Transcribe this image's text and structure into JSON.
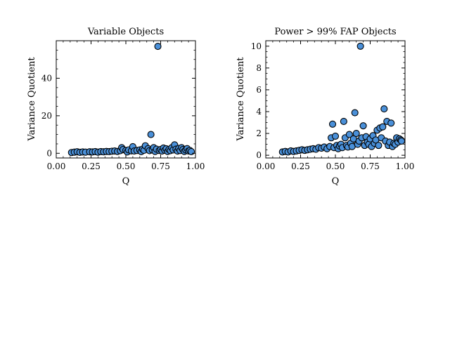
{
  "chart_data": [
    {
      "type": "scatter",
      "title": "Variable Objects",
      "xlabel": "Q",
      "ylabel": "Variance Quotient",
      "xlim": [
        0.0,
        1.0
      ],
      "ylim": [
        -2.5,
        60
      ],
      "xticks": [
        "0.00",
        "0.25",
        "0.50",
        "0.75",
        "1.00"
      ],
      "yticks": [
        "0",
        "20",
        "40"
      ],
      "marker_color": "#4a90d9",
      "marker_edge_color": "#000000",
      "points": [
        [
          0.11,
          0.4
        ],
        [
          0.13,
          0.6
        ],
        [
          0.15,
          0.8
        ],
        [
          0.17,
          0.5
        ],
        [
          0.19,
          0.7
        ],
        [
          0.21,
          0.6
        ],
        [
          0.24,
          0.8
        ],
        [
          0.26,
          0.7
        ],
        [
          0.28,
          0.9
        ],
        [
          0.3,
          0.6
        ],
        [
          0.32,
          0.9
        ],
        [
          0.34,
          0.8
        ],
        [
          0.36,
          1.0
        ],
        [
          0.38,
          0.9
        ],
        [
          0.4,
          1.1
        ],
        [
          0.42,
          1.2
        ],
        [
          0.44,
          1.0
        ],
        [
          0.46,
          1.4
        ],
        [
          0.47,
          3.0
        ],
        [
          0.48,
          2.0
        ],
        [
          0.5,
          1.5
        ],
        [
          0.51,
          0.7
        ],
        [
          0.52,
          1.8
        ],
        [
          0.54,
          1.3
        ],
        [
          0.55,
          3.5
        ],
        [
          0.56,
          1.2
        ],
        [
          0.58,
          1.5
        ],
        [
          0.6,
          1.8
        ],
        [
          0.61,
          0.9
        ],
        [
          0.62,
          2.2
        ],
        [
          0.63,
          1.6
        ],
        [
          0.64,
          4.0
        ],
        [
          0.66,
          2.5
        ],
        [
          0.67,
          1.4
        ],
        [
          0.68,
          10.0
        ],
        [
          0.69,
          1.8
        ],
        [
          0.7,
          3.0
        ],
        [
          0.71,
          1.0
        ],
        [
          0.72,
          2.2
        ],
        [
          0.73,
          57.0
        ],
        [
          0.74,
          1.5
        ],
        [
          0.75,
          2.0
        ],
        [
          0.76,
          1.2
        ],
        [
          0.77,
          2.8
        ],
        [
          0.78,
          1.6
        ],
        [
          0.79,
          2.4
        ],
        [
          0.8,
          1.0
        ],
        [
          0.81,
          2.0
        ],
        [
          0.82,
          1.4
        ],
        [
          0.83,
          3.0
        ],
        [
          0.84,
          1.8
        ],
        [
          0.85,
          4.5
        ],
        [
          0.86,
          2.2
        ],
        [
          0.87,
          1.2
        ],
        [
          0.88,
          2.6
        ],
        [
          0.89,
          1.5
        ],
        [
          0.9,
          3.0
        ],
        [
          0.91,
          2.0
        ],
        [
          0.92,
          1.0
        ],
        [
          0.93,
          1.8
        ],
        [
          0.94,
          2.5
        ],
        [
          0.95,
          1.2
        ],
        [
          0.96,
          1.5
        ],
        [
          0.97,
          0.9
        ]
      ]
    },
    {
      "type": "scatter",
      "title": "Power > 99% FAP Objects",
      "xlabel": "Q",
      "ylabel": "Variance Quotient",
      "xlim": [
        0.0,
        1.0
      ],
      "ylim": [
        -0.25,
        10.5
      ],
      "xticks": [
        "0.00",
        "0.25",
        "0.50",
        "0.75",
        "1.00"
      ],
      "yticks": [
        "0",
        "2",
        "4",
        "6",
        "8",
        "10"
      ],
      "marker_color": "#4a90d9",
      "marker_edge_color": "#000000",
      "points": [
        [
          0.12,
          0.3
        ],
        [
          0.14,
          0.35
        ],
        [
          0.16,
          0.3
        ],
        [
          0.18,
          0.4
        ],
        [
          0.2,
          0.35
        ],
        [
          0.22,
          0.4
        ],
        [
          0.24,
          0.45
        ],
        [
          0.26,
          0.5
        ],
        [
          0.28,
          0.45
        ],
        [
          0.3,
          0.5
        ],
        [
          0.32,
          0.55
        ],
        [
          0.34,
          0.6
        ],
        [
          0.36,
          0.55
        ],
        [
          0.38,
          0.7
        ],
        [
          0.4,
          0.65
        ],
        [
          0.42,
          0.75
        ],
        [
          0.44,
          0.6
        ],
        [
          0.46,
          0.8
        ],
        [
          0.47,
          1.6
        ],
        [
          0.48,
          2.85
        ],
        [
          0.49,
          0.7
        ],
        [
          0.5,
          1.75
        ],
        [
          0.51,
          0.9
        ],
        [
          0.52,
          0.6
        ],
        [
          0.53,
          0.85
        ],
        [
          0.54,
          1.0
        ],
        [
          0.55,
          0.7
        ],
        [
          0.56,
          3.1
        ],
        [
          0.57,
          1.6
        ],
        [
          0.58,
          0.9
        ],
        [
          0.59,
          0.75
        ],
        [
          0.6,
          1.9
        ],
        [
          0.61,
          1.1
        ],
        [
          0.62,
          0.8
        ],
        [
          0.63,
          1.5
        ],
        [
          0.64,
          3.9
        ],
        [
          0.65,
          2.0
        ],
        [
          0.66,
          1.0
        ],
        [
          0.67,
          1.3
        ],
        [
          0.68,
          10.0
        ],
        [
          0.69,
          1.6
        ],
        [
          0.7,
          2.7
        ],
        [
          0.71,
          0.9
        ],
        [
          0.72,
          1.7
        ],
        [
          0.73,
          1.2
        ],
        [
          0.74,
          1.0
        ],
        [
          0.75,
          1.5
        ],
        [
          0.76,
          0.8
        ],
        [
          0.77,
          1.8
        ],
        [
          0.78,
          1.1
        ],
        [
          0.79,
          1.4
        ],
        [
          0.8,
          2.3
        ],
        [
          0.81,
          0.9
        ],
        [
          0.82,
          2.5
        ],
        [
          0.83,
          1.6
        ],
        [
          0.84,
          2.6
        ],
        [
          0.85,
          4.25
        ],
        [
          0.86,
          1.3
        ],
        [
          0.87,
          3.1
        ],
        [
          0.88,
          0.9
        ],
        [
          0.89,
          1.2
        ],
        [
          0.9,
          2.95
        ],
        [
          0.91,
          0.8
        ],
        [
          0.92,
          1.1
        ],
        [
          0.93,
          1.0
        ],
        [
          0.94,
          1.6
        ],
        [
          0.95,
          1.2
        ],
        [
          0.96,
          1.5
        ],
        [
          0.97,
          1.4
        ],
        [
          0.975,
          1.3
        ]
      ]
    }
  ]
}
